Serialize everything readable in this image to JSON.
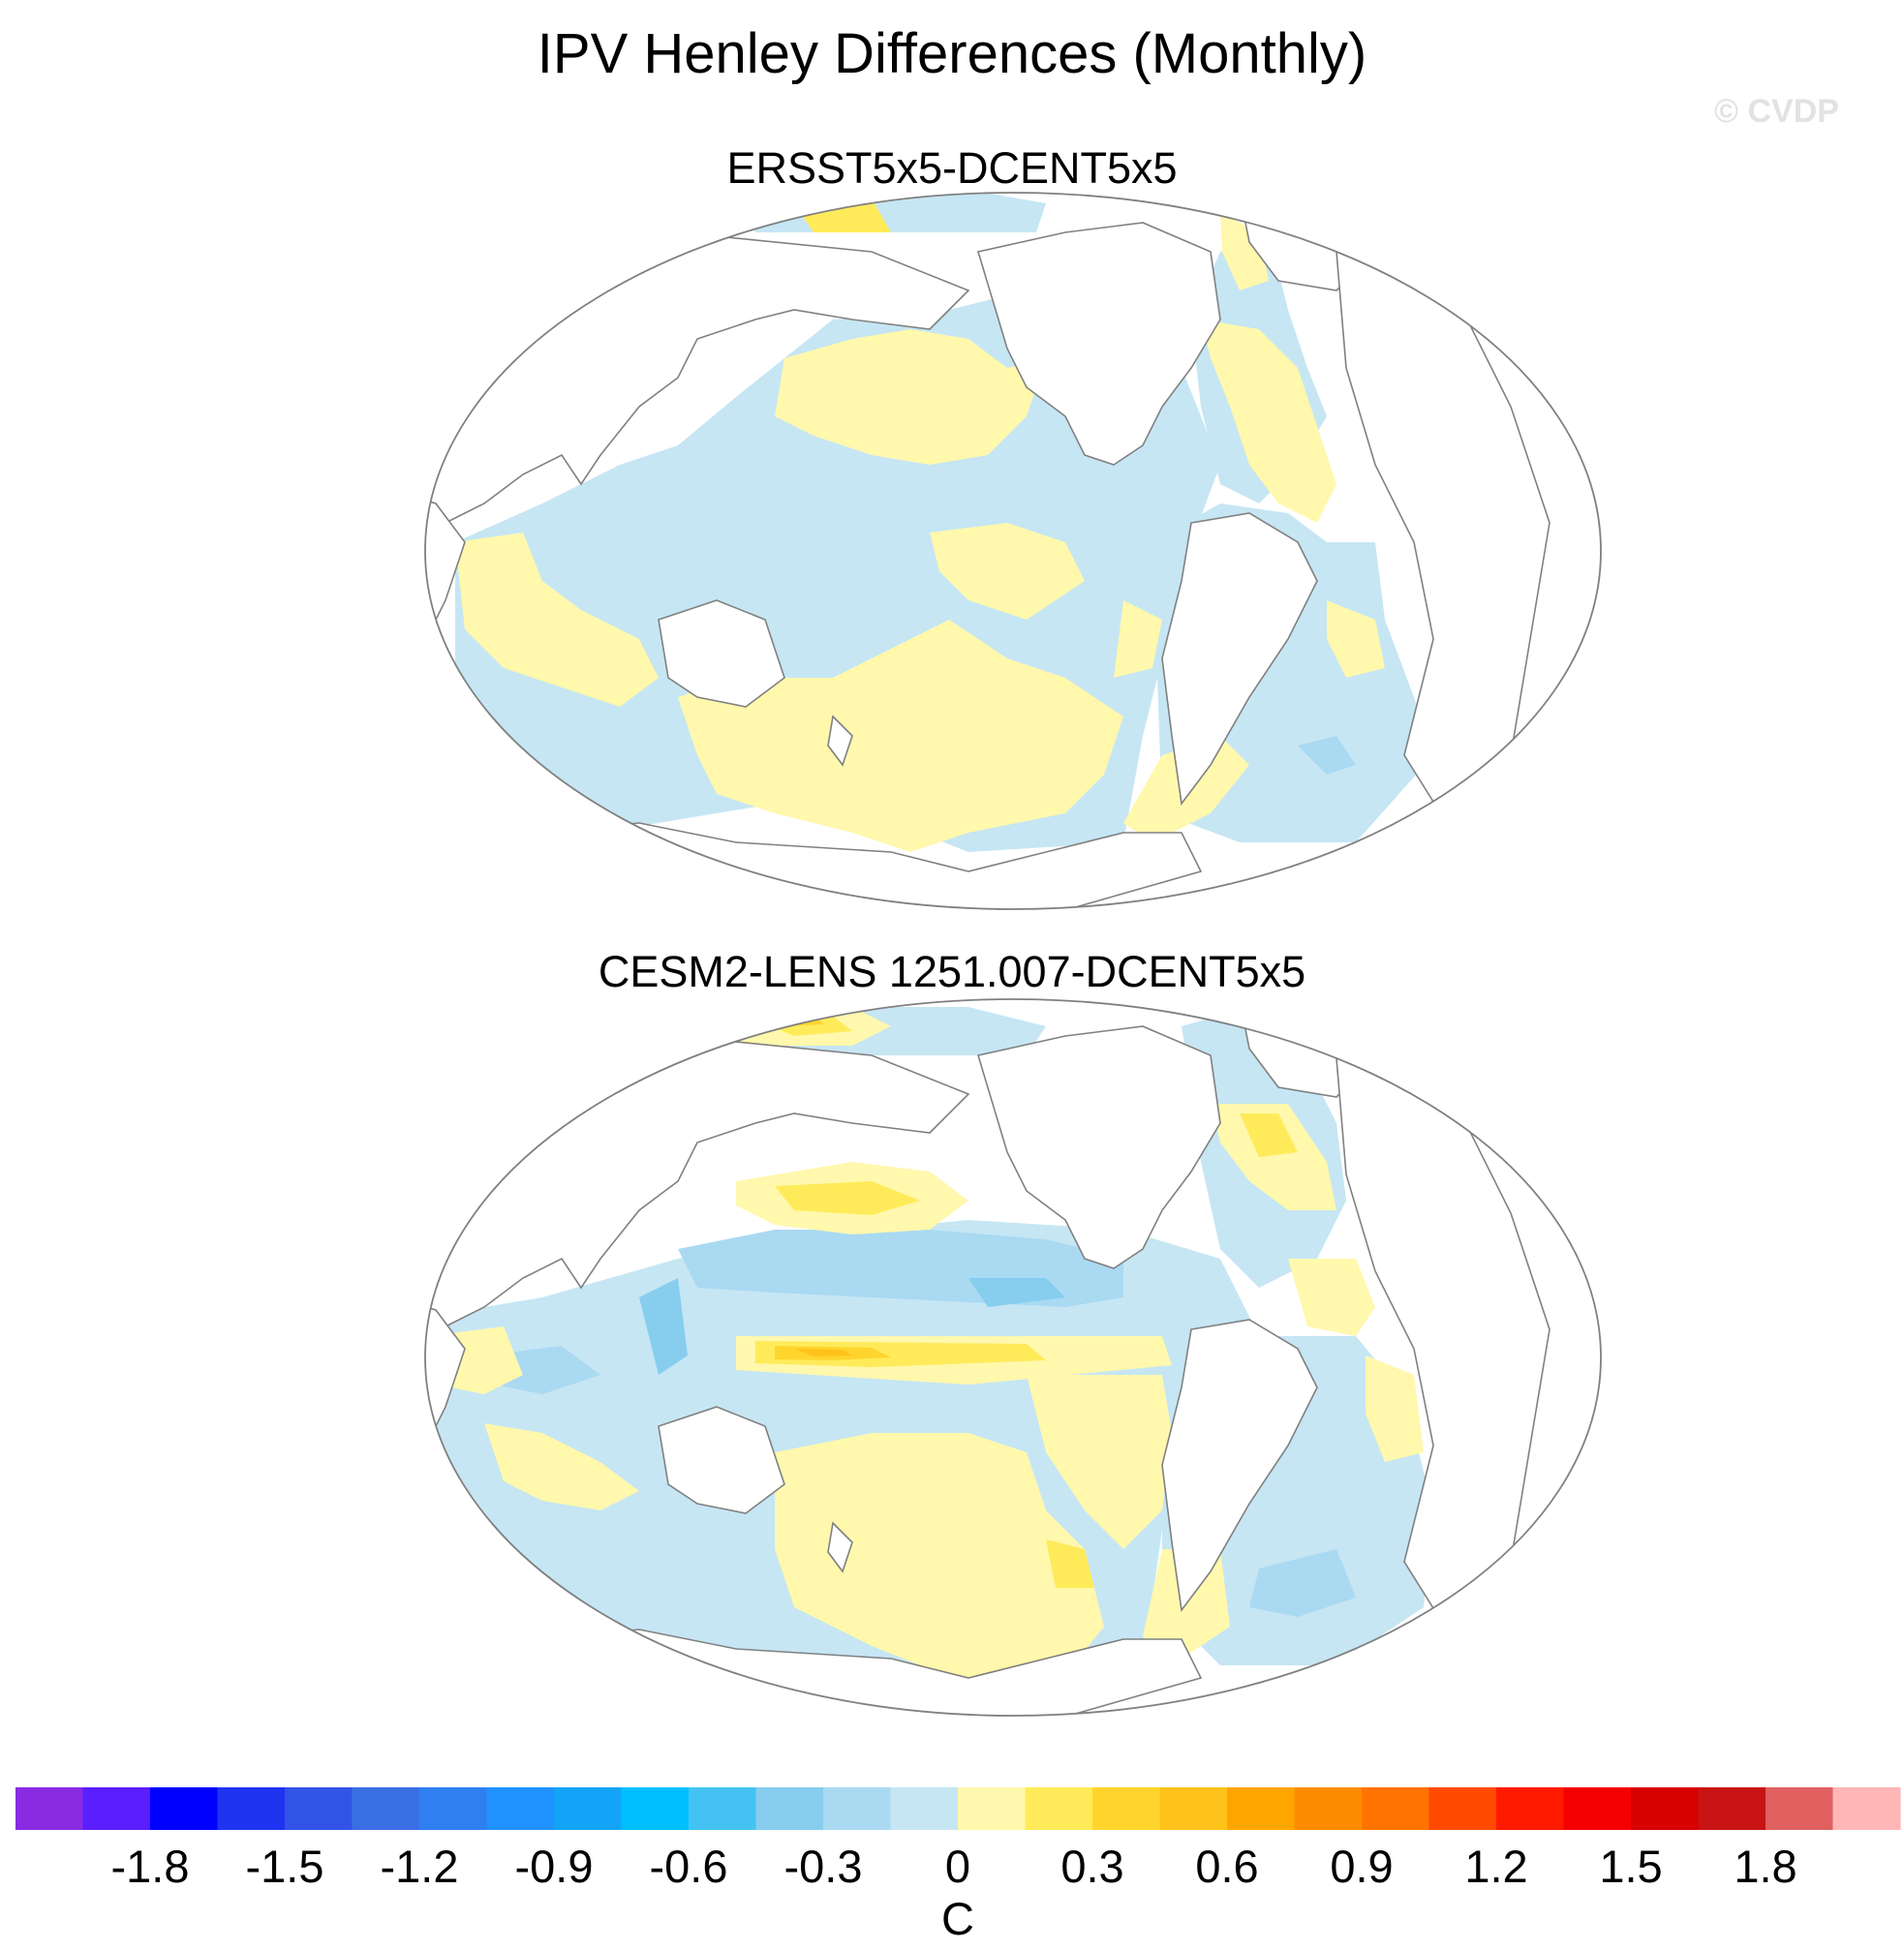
{
  "title": "IPV Henley Differences (Monthly)",
  "watermark": "© CVDP",
  "panels": [
    {
      "title": "ERSST5x5-DCENT5x5"
    },
    {
      "title": "CESM2-LENS 1251.007-DCENT5x5"
    }
  ],
  "colorbar": {
    "unit": "C",
    "tick_labels": [
      "-1.8",
      "-1.5",
      "-1.2",
      "-0.9",
      "-0.6",
      "-0.3",
      "0",
      "0.3",
      "0.6",
      "0.9",
      "1.2",
      "1.5",
      "1.8"
    ],
    "colors": [
      "#8a2be2",
      "#5a1eff",
      "#0000ff",
      "#1e34f0",
      "#3254e6",
      "#3a6fe4",
      "#2f7ff0",
      "#1f92ff",
      "#13a4f7",
      "#00bfff",
      "#44c3f2",
      "#86cdee",
      "#aad9f2",
      "#c6e6f4",
      "#fff8ad",
      "#ffeb5a",
      "#ffd52d",
      "#ffc21a",
      "#ffa500",
      "#ff8c00",
      "#ff7300",
      "#ff4a00",
      "#ff1a00",
      "#f50000",
      "#d60000",
      "#c81414",
      "#e06060",
      "#ffb6b6"
    ]
  }
}
